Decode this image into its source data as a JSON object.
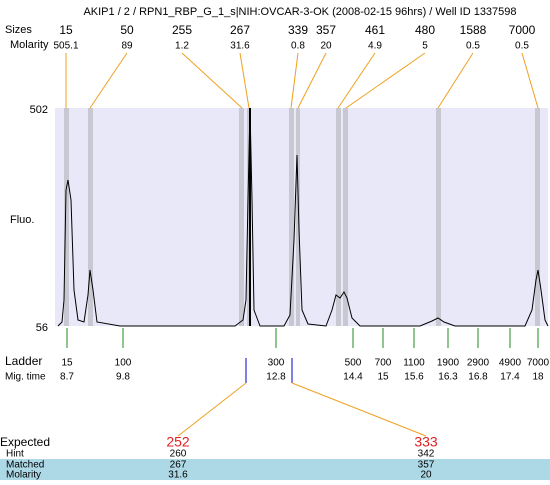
{
  "title": "AKIP1 / 2 / RPN1_RBP_G_1_s|NIH:OVCAR-3-OK (2008-02-15 96hrs) / Well ID 1337598",
  "top": {
    "sizes_label": "Sizes",
    "molarity_label": "Molarity",
    "peaks": [
      {
        "size": 15,
        "molarity": 505.1
      },
      {
        "size": 50,
        "molarity": 89
      },
      {
        "size": 255,
        "molarity": 1.2
      },
      {
        "size": 267,
        "molarity": 31.6
      },
      {
        "size": 339,
        "molarity": 0.8
      },
      {
        "size": 357,
        "molarity": 20
      },
      {
        "size": 461,
        "molarity": 4.9
      },
      {
        "size": 480,
        "molarity": 5
      },
      {
        "size": 1588,
        "molarity": 0.5
      },
      {
        "size": 7000,
        "molarity": 0.5
      }
    ]
  },
  "y_axis": {
    "label": "Fluo.",
    "top": 502,
    "bottom": 56
  },
  "ladder": {
    "label": "Ladder",
    "time_label": "Mig. time",
    "items": [
      {
        "size": 15,
        "time": 8.7
      },
      {
        "size": 100,
        "time": 9.8
      },
      {
        "size": 300,
        "time": 12.8
      },
      {
        "size": 500,
        "time": 14.4
      },
      {
        "size": 700,
        "time": 15
      },
      {
        "size": 1100,
        "time": 15.6
      },
      {
        "size": 1900,
        "time": 16.3
      },
      {
        "size": 2900,
        "time": 16.8
      },
      {
        "size": 4900,
        "time": 17.4
      },
      {
        "size": 7000,
        "time": 18
      }
    ]
  },
  "expected": {
    "labels": [
      "Expected",
      "Hint",
      "Matched",
      "Molarity"
    ],
    "peaks": [
      {
        "expected": 252,
        "hint": 260,
        "matched": 267,
        "molarity": 31.6
      },
      {
        "expected": 333,
        "hint": 342,
        "matched": 357,
        "molarity": 20
      }
    ]
  }
}
